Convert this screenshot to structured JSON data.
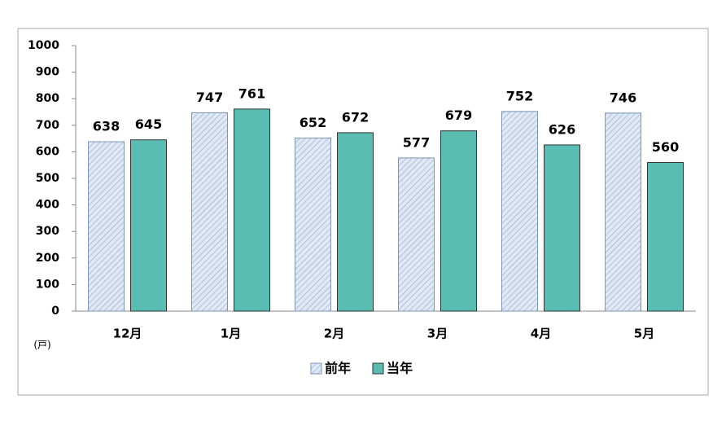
{
  "chart_data": {
    "type": "bar",
    "categories": [
      "12月",
      "1月",
      "2月",
      "3月",
      "4月",
      "5月"
    ],
    "series": [
      {
        "name": "前年",
        "color": "#dfe8f4",
        "values": [
          638,
          747,
          652,
          577,
          752,
          746
        ]
      },
      {
        "name": "当年",
        "color": "#5bbdb2",
        "values": [
          645,
          761,
          672,
          679,
          626,
          560
        ]
      }
    ],
    "ylim": [
      0,
      1000
    ],
    "yticks": [
      0,
      100,
      200,
      300,
      400,
      500,
      600,
      700,
      800,
      900,
      1000
    ],
    "y_axis_label": "(戸)",
    "grid": false,
    "legend": "bottom"
  }
}
